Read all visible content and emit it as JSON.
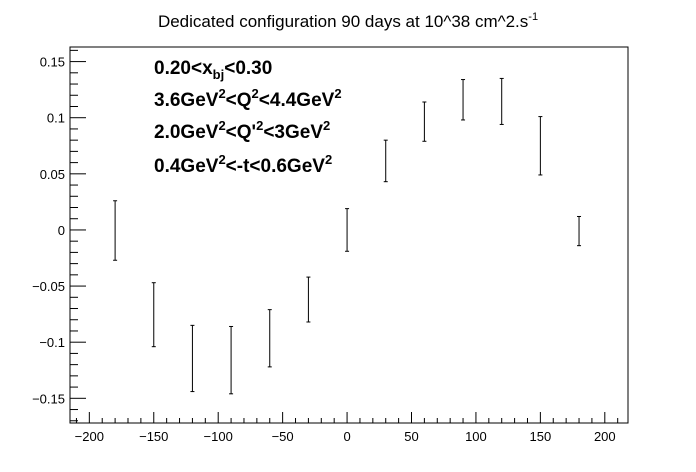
{
  "chart_data": {
    "type": "scatter",
    "title": "Dedicated configuration 90 days at 10^38 cm^2.s",
    "title_sup": "-1",
    "xlabel": "",
    "ylabel": "",
    "xlim": [
      -215,
      218
    ],
    "ylim": [
      -0.172,
      0.163
    ],
    "x_ticks": [
      -200,
      -150,
      -100,
      -50,
      0,
      50,
      100,
      150,
      200
    ],
    "x_tick_labels": [
      "−200",
      "−150",
      "−100",
      "−50",
      "0",
      "50",
      "100",
      "150",
      "200"
    ],
    "y_ticks": [
      -0.15,
      -0.1,
      -0.05,
      0,
      0.05,
      0.1,
      0.15
    ],
    "y_tick_labels": [
      "−0.15",
      "−0.1",
      "−0.05",
      "0",
      "0.05",
      "0.1",
      "0.15"
    ],
    "grid": false,
    "annotations": [
      {
        "parts": [
          {
            "t": "0.20<x"
          },
          {
            "t": "bj",
            "sub": true
          },
          {
            "t": "<0.30"
          }
        ]
      },
      {
        "parts": [
          {
            "t": "3.6GeV"
          },
          {
            "t": "2",
            "sup": true
          },
          {
            "t": "<Q"
          },
          {
            "t": "2",
            "sup": true
          },
          {
            "t": "<4.4GeV"
          },
          {
            "t": "2",
            "sup": true
          }
        ]
      },
      {
        "parts": [
          {
            "t": "2.0GeV"
          },
          {
            "t": "2",
            "sup": true
          },
          {
            "t": "<Q'"
          },
          {
            "t": "2",
            "sup": true
          },
          {
            "t": "<3GeV"
          },
          {
            "t": "2",
            "sup": true
          }
        ]
      },
      {
        "parts": [
          {
            "t": "0.4GeV"
          },
          {
            "t": "2",
            "sup": true
          },
          {
            "t": "<-t<0.6GeV"
          },
          {
            "t": "2",
            "sup": true
          }
        ]
      }
    ],
    "series": [
      {
        "x": [
          -180,
          -150,
          -120,
          -90,
          -60,
          -30,
          0,
          30,
          60,
          90,
          120,
          150,
          180
        ],
        "low": [
          -0.027,
          -0.104,
          -0.144,
          -0.146,
          -0.122,
          -0.082,
          -0.019,
          0.043,
          0.079,
          0.098,
          0.094,
          0.049,
          -0.014
        ],
        "high": [
          0.026,
          -0.047,
          -0.085,
          -0.086,
          -0.071,
          -0.042,
          0.019,
          0.08,
          0.114,
          0.134,
          0.135,
          0.101,
          0.012
        ]
      }
    ]
  }
}
